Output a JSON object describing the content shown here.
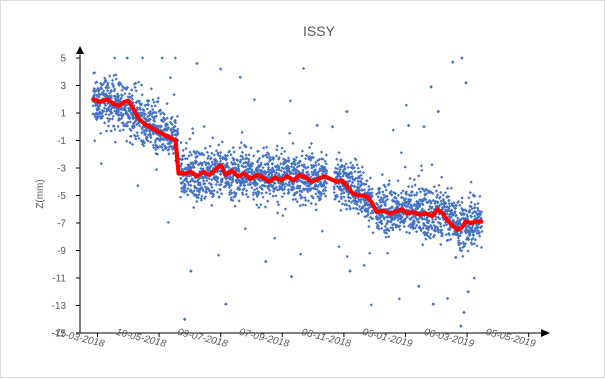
{
  "chart_data": {
    "type": "scatter",
    "title": "ISSY",
    "xlabel": "",
    "ylabel": "Z(mm)",
    "ylim": [
      -15,
      5
    ],
    "y_ticks": [
      5,
      3,
      1,
      -1,
      -3,
      -5,
      -7,
      -9,
      -11,
      -13,
      -15
    ],
    "x_axis_type": "date",
    "xlim": [
      "2018-02-22",
      "2019-05-17"
    ],
    "x_ticks": [
      {
        "date": "2018-03-11",
        "label": "11-03-2018"
      },
      {
        "date": "2018-05-10",
        "label": "10-05-2018"
      },
      {
        "date": "2018-07-09",
        "label": "09-07-2018"
      },
      {
        "date": "2018-09-07",
        "label": "07-09-2018"
      },
      {
        "date": "2018-11-06",
        "label": "06-11-2018"
      },
      {
        "date": "2019-01-05",
        "label": "05-01-2019"
      },
      {
        "date": "2019-03-06",
        "label": "06-03-2019"
      },
      {
        "date": "2019-05-05",
        "label": "05-05-2019"
      }
    ],
    "grid": false,
    "legend": "none",
    "series": [
      {
        "kind": "scatter",
        "color": "#4472c4",
        "marker": "diamond",
        "trend_segments": [
          {
            "x": [
              "2018-03-07",
              "2018-04-01",
              "2018-05-15",
              "2018-05-28"
            ],
            "y": [
              2.0,
              1.6,
              -0.3,
              -1.0
            ]
          },
          {
            "x": [
              "2018-05-31",
              "2018-07-09",
              "2018-08-10",
              "2018-09-25",
              "2018-10-20"
            ],
            "y": [
              -3.5,
              -3.3,
              -3.4,
              -3.7,
              -3.6
            ]
          },
          {
            "x": [
              "2018-10-28",
              "2018-11-20",
              "2018-12-04"
            ],
            "y": [
              -3.8,
              -4.5,
              -5.6
            ]
          },
          {
            "x": [
              "2018-12-08",
              "2019-01-05",
              "2019-02-10",
              "2019-02-25",
              "2019-03-10",
              "2019-03-20"
            ],
            "y": [
              -6.0,
              -6.1,
              -6.2,
              -7.0,
              -7.0,
              -6.9
            ]
          }
        ],
        "spread": 1.2,
        "outliers": [
          {
            "x": "2018-06-04",
            "y": -14.0
          },
          {
            "x": "2018-06-10",
            "y": -10.5
          },
          {
            "x": "2018-06-16",
            "y": 4.6
          },
          {
            "x": "2018-07-14",
            "y": -12.9
          },
          {
            "x": "2018-07-09",
            "y": 4.2
          },
          {
            "x": "2018-07-28",
            "y": 3.6
          },
          {
            "x": "2018-08-22",
            "y": -9.8
          },
          {
            "x": "2018-09-16",
            "y": -10.9
          },
          {
            "x": "2018-10-11",
            "y": 0.1
          },
          {
            "x": "2018-10-26",
            "y": 0.0
          },
          {
            "x": "2018-11-09",
            "y": 1.1
          },
          {
            "x": "2018-11-12",
            "y": -10.5
          },
          {
            "x": "2019-01-08",
            "y": 0.1
          },
          {
            "x": "2019-01-18",
            "y": -11.6
          },
          {
            "x": "2019-01-23",
            "y": 0.0
          },
          {
            "x": "2019-01-30",
            "y": 2.9
          },
          {
            "x": "2019-02-01",
            "y": -12.9
          },
          {
            "x": "2019-02-06",
            "y": 1.1
          },
          {
            "x": "2019-02-20",
            "y": 4.7
          },
          {
            "x": "2019-02-23",
            "y": -9.5
          },
          {
            "x": "2019-02-28",
            "y": -14.5
          },
          {
            "x": "2019-03-01",
            "y": 5.0
          },
          {
            "x": "2019-03-03",
            "y": -13.5
          },
          {
            "x": "2019-03-05",
            "y": 3.2
          },
          {
            "x": "2019-03-07",
            "y": -12.0
          }
        ]
      },
      {
        "kind": "line",
        "color": "#ff0000",
        "points": [
          {
            "x": "2018-03-07",
            "y": 2.0
          },
          {
            "x": "2018-03-14",
            "y": 1.8
          },
          {
            "x": "2018-03-20",
            "y": 2.0
          },
          {
            "x": "2018-03-26",
            "y": 1.7
          },
          {
            "x": "2018-04-01",
            "y": 1.5
          },
          {
            "x": "2018-04-06",
            "y": 1.8
          },
          {
            "x": "2018-04-10",
            "y": 1.9
          },
          {
            "x": "2018-04-15",
            "y": 1.3
          },
          {
            "x": "2018-04-20",
            "y": 0.6
          },
          {
            "x": "2018-04-26",
            "y": 0.2
          },
          {
            "x": "2018-05-03",
            "y": -0.1
          },
          {
            "x": "2018-05-10",
            "y": -0.4
          },
          {
            "x": "2018-05-18",
            "y": -0.7
          },
          {
            "x": "2018-05-26",
            "y": -1.0
          },
          {
            "x": "2018-05-29",
            "y": -3.4
          },
          {
            "x": "2018-06-04",
            "y": -3.4
          },
          {
            "x": "2018-06-10",
            "y": -3.3
          },
          {
            "x": "2018-06-16",
            "y": -3.6
          },
          {
            "x": "2018-06-22",
            "y": -3.3
          },
          {
            "x": "2018-06-28",
            "y": -3.5
          },
          {
            "x": "2018-07-04",
            "y": -3.1
          },
          {
            "x": "2018-07-09",
            "y": -2.8
          },
          {
            "x": "2018-07-14",
            "y": -3.5
          },
          {
            "x": "2018-07-20",
            "y": -3.2
          },
          {
            "x": "2018-07-26",
            "y": -3.6
          },
          {
            "x": "2018-08-01",
            "y": -3.4
          },
          {
            "x": "2018-08-07",
            "y": -3.8
          },
          {
            "x": "2018-08-13",
            "y": -3.5
          },
          {
            "x": "2018-08-19",
            "y": -3.7
          },
          {
            "x": "2018-08-25",
            "y": -4.0
          },
          {
            "x": "2018-08-31",
            "y": -3.7
          },
          {
            "x": "2018-09-06",
            "y": -3.9
          },
          {
            "x": "2018-09-12",
            "y": -3.6
          },
          {
            "x": "2018-09-18",
            "y": -3.9
          },
          {
            "x": "2018-09-24",
            "y": -3.5
          },
          {
            "x": "2018-09-30",
            "y": -3.7
          },
          {
            "x": "2018-10-06",
            "y": -4.0
          },
          {
            "x": "2018-10-12",
            "y": -3.8
          },
          {
            "x": "2018-10-18",
            "y": -3.6
          },
          {
            "x": "2018-10-24",
            "y": -3.8
          },
          {
            "x": "2018-10-30",
            "y": -4.0
          },
          {
            "x": "2018-11-04",
            "y": -3.9
          },
          {
            "x": "2018-11-09",
            "y": -4.3
          },
          {
            "x": "2018-11-14",
            "y": -4.8
          },
          {
            "x": "2018-11-19",
            "y": -5.0
          },
          {
            "x": "2018-11-24",
            "y": -5.0
          },
          {
            "x": "2018-11-29",
            "y": -5.1
          },
          {
            "x": "2018-12-04",
            "y": -5.6
          },
          {
            "x": "2018-12-08",
            "y": -6.2
          },
          {
            "x": "2018-12-14",
            "y": -6.1
          },
          {
            "x": "2018-12-20",
            "y": -6.3
          },
          {
            "x": "2018-12-26",
            "y": -6.2
          },
          {
            "x": "2019-01-01",
            "y": -6.0
          },
          {
            "x": "2019-01-07",
            "y": -6.3
          },
          {
            "x": "2019-01-13",
            "y": -6.2
          },
          {
            "x": "2019-01-19",
            "y": -6.4
          },
          {
            "x": "2019-01-25",
            "y": -6.3
          },
          {
            "x": "2019-01-31",
            "y": -6.5
          },
          {
            "x": "2019-02-05",
            "y": -6.0
          },
          {
            "x": "2019-02-10",
            "y": -6.3
          },
          {
            "x": "2019-02-15",
            "y": -6.8
          },
          {
            "x": "2019-02-20",
            "y": -7.2
          },
          {
            "x": "2019-02-25",
            "y": -7.5
          },
          {
            "x": "2019-03-01",
            "y": -7.3
          },
          {
            "x": "2019-03-05",
            "y": -6.9
          },
          {
            "x": "2019-03-10",
            "y": -7.0
          },
          {
            "x": "2019-03-15",
            "y": -6.9
          },
          {
            "x": "2019-03-20",
            "y": -6.9
          }
        ]
      }
    ]
  }
}
